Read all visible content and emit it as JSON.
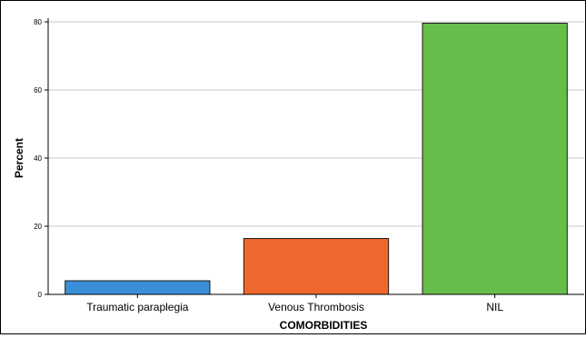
{
  "chart_data": {
    "type": "bar",
    "title": "",
    "xlabel": "COMORBIDITIES",
    "ylabel": "Percent",
    "categories": [
      "Traumatic paraplegia",
      "Venous Thrombosis",
      "NIL"
    ],
    "values": [
      4,
      16.4,
      79.6
    ],
    "colors": [
      "#3a8fd8",
      "#f0672e",
      "#66bd4a"
    ],
    "ylim": [
      0,
      80
    ],
    "yticks": [
      0,
      20,
      40,
      60,
      80
    ],
    "grid": true,
    "legend": "none"
  }
}
